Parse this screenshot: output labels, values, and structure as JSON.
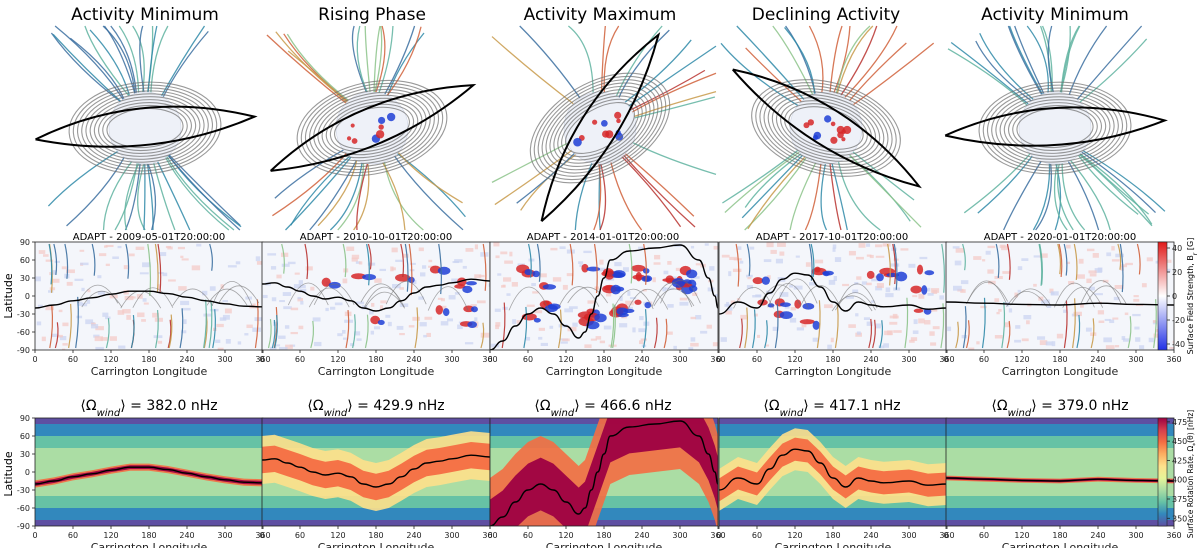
{
  "figure": {
    "top_titles": [
      "Activity Minimum",
      "Rising Phase",
      "Activity Maximum",
      "Declining Activity",
      "Activity Minimum"
    ],
    "map_titles": [
      "ADAPT - 2009-05-01T20:00:00",
      "ADAPT - 2010-10-01T20:00:00",
      "ADAPT - 2014-01-01T20:00:00",
      "ADAPT - 2017-10-01T20:00:00",
      "ADAPT - 2020-01-01T20:00:00"
    ],
    "omega_prefix": "⟨Ω",
    "omega_sub": "wind",
    "omega_suffix": "⟩ = ",
    "omega_values": [
      "382.0 nHz",
      "429.9 nHz",
      "466.6 nHz",
      "417.1 nHz",
      "379.0 nHz"
    ],
    "colors": {
      "bg": "#ffffff",
      "axis": "#222222",
      "open_field_lines": [
        "#3b6fa0",
        "#2f8aa8",
        "#5fb3a0",
        "#8cc38a",
        "#c89a4a",
        "#d0603a",
        "#b8322f"
      ],
      "closed_field_lines": "#6e6e6e",
      "current_sheet": "#000000",
      "positive_field": "#d62728",
      "negative_field": "#1f3fd6"
    }
  },
  "chart_data": [
    {
      "type": "heatmap",
      "row": "surface_field",
      "panels": 5,
      "xlabel": "Carrington Longitude",
      "ylabel": "Latitude",
      "xlim": [
        0,
        360
      ],
      "ylim": [
        -90,
        90
      ],
      "xticks": [
        0,
        60,
        120,
        180,
        240,
        300,
        360
      ],
      "yticks": [
        -90,
        -60,
        -30,
        0,
        30,
        60,
        90
      ],
      "colorbar": {
        "label": "Surface Field Strength, B",
        "label_sub": "r",
        "label_unit": " [G]",
        "ticks": [
          -40,
          -20,
          0,
          20,
          40
        ],
        "range": [
          -45,
          45
        ],
        "colormap": "bwr"
      },
      "neutral_lines": [
        [
          [
            0,
            -20
          ],
          [
            30,
            -15
          ],
          [
            60,
            -8
          ],
          [
            90,
            -3
          ],
          [
            120,
            3
          ],
          [
            150,
            8
          ],
          [
            180,
            8
          ],
          [
            210,
            4
          ],
          [
            240,
            -2
          ],
          [
            270,
            -8
          ],
          [
            300,
            -13
          ],
          [
            330,
            -17
          ],
          [
            360,
            -18
          ]
        ],
        [
          [
            0,
            20
          ],
          [
            20,
            22
          ],
          [
            40,
            15
          ],
          [
            60,
            8
          ],
          [
            80,
            0
          ],
          [
            100,
            -5
          ],
          [
            120,
            -2
          ],
          [
            140,
            -8
          ],
          [
            160,
            -20
          ],
          [
            180,
            -25
          ],
          [
            200,
            -20
          ],
          [
            220,
            -8
          ],
          [
            240,
            5
          ],
          [
            260,
            15
          ],
          [
            280,
            18
          ],
          [
            300,
            22
          ],
          [
            330,
            28
          ],
          [
            360,
            25
          ]
        ],
        [
          [
            0,
            -90
          ],
          [
            20,
            -75
          ],
          [
            40,
            -50
          ],
          [
            60,
            -30
          ],
          [
            80,
            -20
          ],
          [
            100,
            -30
          ],
          [
            120,
            -50
          ],
          [
            140,
            -70
          ],
          [
            150,
            -60
          ],
          [
            160,
            -30
          ],
          [
            170,
            0
          ],
          [
            180,
            30
          ],
          [
            190,
            60
          ],
          [
            220,
            75
          ],
          [
            260,
            80
          ],
          [
            300,
            85
          ],
          [
            330,
            60
          ],
          [
            345,
            30
          ],
          [
            355,
            0
          ],
          [
            360,
            -20
          ]
        ],
        [
          [
            0,
            -30
          ],
          [
            30,
            -10
          ],
          [
            60,
            -20
          ],
          [
            80,
            5
          ],
          [
            100,
            28
          ],
          [
            120,
            38
          ],
          [
            140,
            35
          ],
          [
            160,
            15
          ],
          [
            180,
            -10
          ],
          [
            200,
            -25
          ],
          [
            220,
            -10
          ],
          [
            240,
            -15
          ],
          [
            260,
            -18
          ],
          [
            300,
            -15
          ],
          [
            330,
            -22
          ],
          [
            360,
            -20
          ]
        ],
        [
          [
            0,
            -10
          ],
          [
            60,
            -12
          ],
          [
            120,
            -14
          ],
          [
            180,
            -15
          ],
          [
            240,
            -12
          ],
          [
            300,
            -14
          ],
          [
            360,
            -15
          ]
        ]
      ]
    },
    {
      "type": "heatmap",
      "row": "surface_rotation_rate",
      "panels": 5,
      "xlabel": "Carrington Longitude",
      "ylabel": "Latitude",
      "xlim": [
        0,
        360
      ],
      "ylim": [
        -90,
        90
      ],
      "xticks": [
        0,
        60,
        120,
        180,
        240,
        300,
        360
      ],
      "yticks": [
        -90,
        -60,
        -30,
        0,
        30,
        60,
        90
      ],
      "colorbar": {
        "label": "Surface Rotation Rate, Ω",
        "label_sub": "*",
        "label_unit": "(θ) [nHz]",
        "ticks": [
          350,
          375,
          400,
          425,
          450,
          475
        ],
        "range": [
          340,
          480
        ],
        "colormap": "Spectral_r"
      },
      "omega_wind_nHz": [
        382.0,
        429.9,
        466.6,
        417.1,
        379.0
      ]
    }
  ]
}
